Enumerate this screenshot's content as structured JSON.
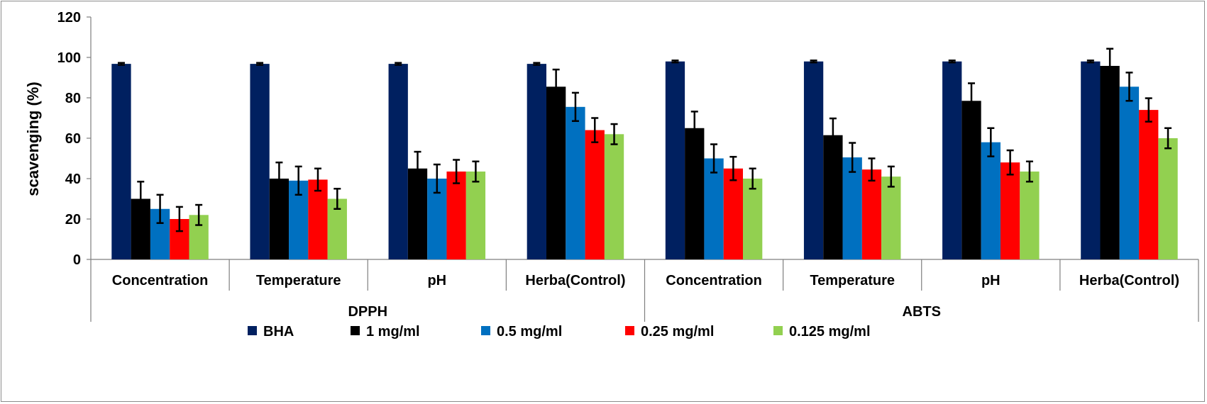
{
  "chart_data": {
    "type": "bar",
    "ylabel": "scavenging (%)",
    "xlabel": "",
    "ylim": [
      0,
      120
    ],
    "yticks": [
      0,
      20,
      40,
      60,
      80,
      100,
      120
    ],
    "grid": false,
    "legend_position": "bottom",
    "groups": [
      {
        "name": "DPPH",
        "categories": [
          "Concentration",
          "Temperature",
          "pH",
          "Herba(Control)"
        ]
      },
      {
        "name": "ABTS",
        "categories": [
          "Concentration",
          "Temperature",
          "pH",
          "Herba(Control)"
        ]
      }
    ],
    "categories": [
      "Concentration",
      "Temperature",
      "pH",
      "Herba(Control)",
      "Concentration",
      "Temperature",
      "pH",
      "Herba(Control)"
    ],
    "series": [
      {
        "name": "BHA",
        "color": "#002060",
        "values": [
          96.8,
          96.8,
          96.8,
          96.8,
          98.0,
          98.0,
          98.0,
          98.0
        ],
        "errors": [
          0.5,
          0.5,
          0.5,
          0.5,
          0.5,
          0.5,
          0.5,
          0.5
        ]
      },
      {
        "name": "1 mg/ml",
        "color": "#000000",
        "values": [
          30,
          40,
          45,
          85.5,
          65,
          61.5,
          78.5,
          95.8
        ],
        "errors": [
          8.5,
          8,
          8.3,
          8.5,
          8.2,
          8.3,
          8.7,
          8.5
        ]
      },
      {
        "name": "0.5 mg/ml",
        "color": "#0070C0",
        "values": [
          25,
          39,
          40,
          75.5,
          50,
          50.5,
          58,
          85.5
        ],
        "errors": [
          7,
          7,
          7,
          7,
          7,
          7.2,
          7,
          7
        ]
      },
      {
        "name": "0.25 mg/ml",
        "color": "#FF0000",
        "values": [
          20,
          39.5,
          43.5,
          64,
          45,
          44.5,
          48,
          74
        ],
        "errors": [
          6,
          5.5,
          5.8,
          6,
          5.8,
          5.5,
          6,
          5.8
        ]
      },
      {
        "name": "0.125 mg/ml",
        "color": "#92D050",
        "values": [
          22,
          30,
          43.5,
          62,
          40,
          41,
          43.5,
          60
        ],
        "errors": [
          5,
          5,
          5,
          5,
          5,
          5,
          5,
          5
        ]
      }
    ]
  }
}
